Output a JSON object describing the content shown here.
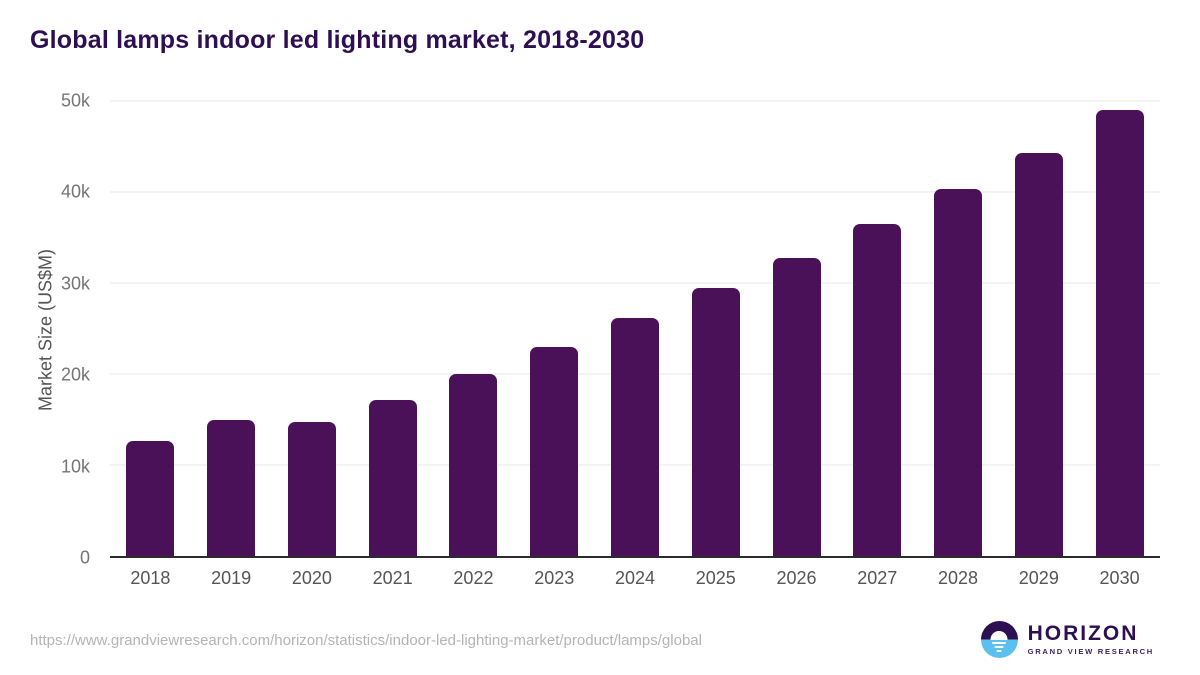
{
  "header": {
    "title": "Global lamps indoor led lighting market, 2018-2030"
  },
  "chart_data": {
    "type": "bar",
    "title": "Global lamps indoor led lighting market, 2018-2030",
    "categories": [
      "2018",
      "2019",
      "2020",
      "2021",
      "2022",
      "2023",
      "2024",
      "2025",
      "2026",
      "2027",
      "2028",
      "2029",
      "2030"
    ],
    "values": [
      12600,
      15000,
      14700,
      17100,
      20000,
      23000,
      26200,
      29500,
      32800,
      36500,
      40300,
      44300,
      49000
    ],
    "xlabel": "",
    "ylabel": "Market Size (US$M)",
    "ylim": [
      0,
      50000
    ],
    "yticks": [
      {
        "value": 0,
        "label": "0"
      },
      {
        "value": 10000,
        "label": "10k"
      },
      {
        "value": 20000,
        "label": "20k"
      },
      {
        "value": 30000,
        "label": "30k"
      },
      {
        "value": 40000,
        "label": "40k"
      },
      {
        "value": 50000,
        "label": "50k"
      }
    ],
    "grid": "horizontal",
    "legend": "none",
    "bar_color": "#4a1159"
  },
  "footer": {
    "source_url": "https://www.grandviewresearch.com/horizon/statistics/indoor-led-lighting-market/product/lamps/global",
    "logo": {
      "name": "HORIZON",
      "subtitle": "GRAND VIEW RESEARCH"
    }
  },
  "colors": {
    "bar": "#4a1159",
    "title": "#2e1052",
    "gridline": "#e7e7e7",
    "axis_line": "#2b2b2b",
    "tick_label": "#757575",
    "source_text": "#b4b4b4",
    "logo_purple": "#2e1052",
    "logo_blue": "#5ac1ef"
  }
}
